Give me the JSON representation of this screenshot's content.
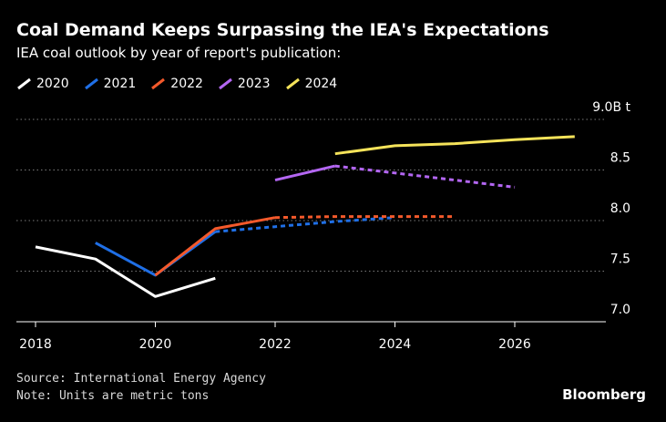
{
  "header": {
    "title": "Coal Demand Keeps Surpassing the IEA's Expectations",
    "subtitle": "IEA coal outlook by year of report's publication:"
  },
  "footer": {
    "source": "Source: International Energy Agency",
    "note": "Note: Units are metric tons",
    "brand": "Bloomberg"
  },
  "chart_data": {
    "type": "line",
    "title": "Coal Demand Keeps Surpassing the IEA's Expectations",
    "subtitle": "IEA coal outlook by year of report's publication:",
    "xlabel": "",
    "ylabel": "",
    "xlim": [
      2018,
      2028
    ],
    "ylim": [
      7.0,
      9.0
    ],
    "y_unit": "B t",
    "x_ticks": [
      2018,
      2020,
      2022,
      2024,
      2026
    ],
    "y_ticks": [
      {
        "value": 7.0,
        "label": "7.0"
      },
      {
        "value": 7.5,
        "label": "7.5"
      },
      {
        "value": 8.0,
        "label": "8.0"
      },
      {
        "value": 8.5,
        "label": "8.5"
      },
      {
        "value": 9.0,
        "label": "9.0B t"
      }
    ],
    "grid": true,
    "legend_position": "top-left",
    "note": "solid segments = actual/estimate, dashed segments = forecast",
    "series": [
      {
        "name": "2020",
        "color": "#ffffff",
        "solid": [
          [
            2018,
            7.74
          ],
          [
            2019,
            7.62
          ],
          [
            2020,
            7.25
          ],
          [
            2021,
            7.43
          ]
        ],
        "dashed": []
      },
      {
        "name": "2021",
        "color": "#1f6fe6",
        "solid": [
          [
            2019,
            7.78
          ],
          [
            2020,
            7.46
          ],
          [
            2021,
            7.89
          ]
        ],
        "dashed": [
          [
            2021,
            7.89
          ],
          [
            2022,
            7.94
          ],
          [
            2023,
            7.99
          ],
          [
            2024,
            8.03
          ]
        ]
      },
      {
        "name": "2022",
        "color": "#f4592b",
        "solid": [
          [
            2020,
            7.46
          ],
          [
            2021,
            7.92
          ],
          [
            2022,
            8.03
          ]
        ],
        "dashed": [
          [
            2022,
            8.03
          ],
          [
            2023,
            8.04
          ],
          [
            2024,
            8.04
          ],
          [
            2025,
            8.04
          ]
        ]
      },
      {
        "name": "2023",
        "color": "#b366f2",
        "solid": [
          [
            2022,
            8.4
          ],
          [
            2023,
            8.54
          ]
        ],
        "dashed": [
          [
            2023,
            8.54
          ],
          [
            2024,
            8.47
          ],
          [
            2025,
            8.4
          ],
          [
            2026,
            8.33
          ]
        ]
      },
      {
        "name": "2024",
        "color": "#f5e35a",
        "solid": [
          [
            2023,
            8.66
          ],
          [
            2024,
            8.74
          ],
          [
            2025,
            8.76
          ],
          [
            2026,
            8.8
          ],
          [
            2027,
            8.83
          ]
        ],
        "dashed": []
      }
    ]
  }
}
